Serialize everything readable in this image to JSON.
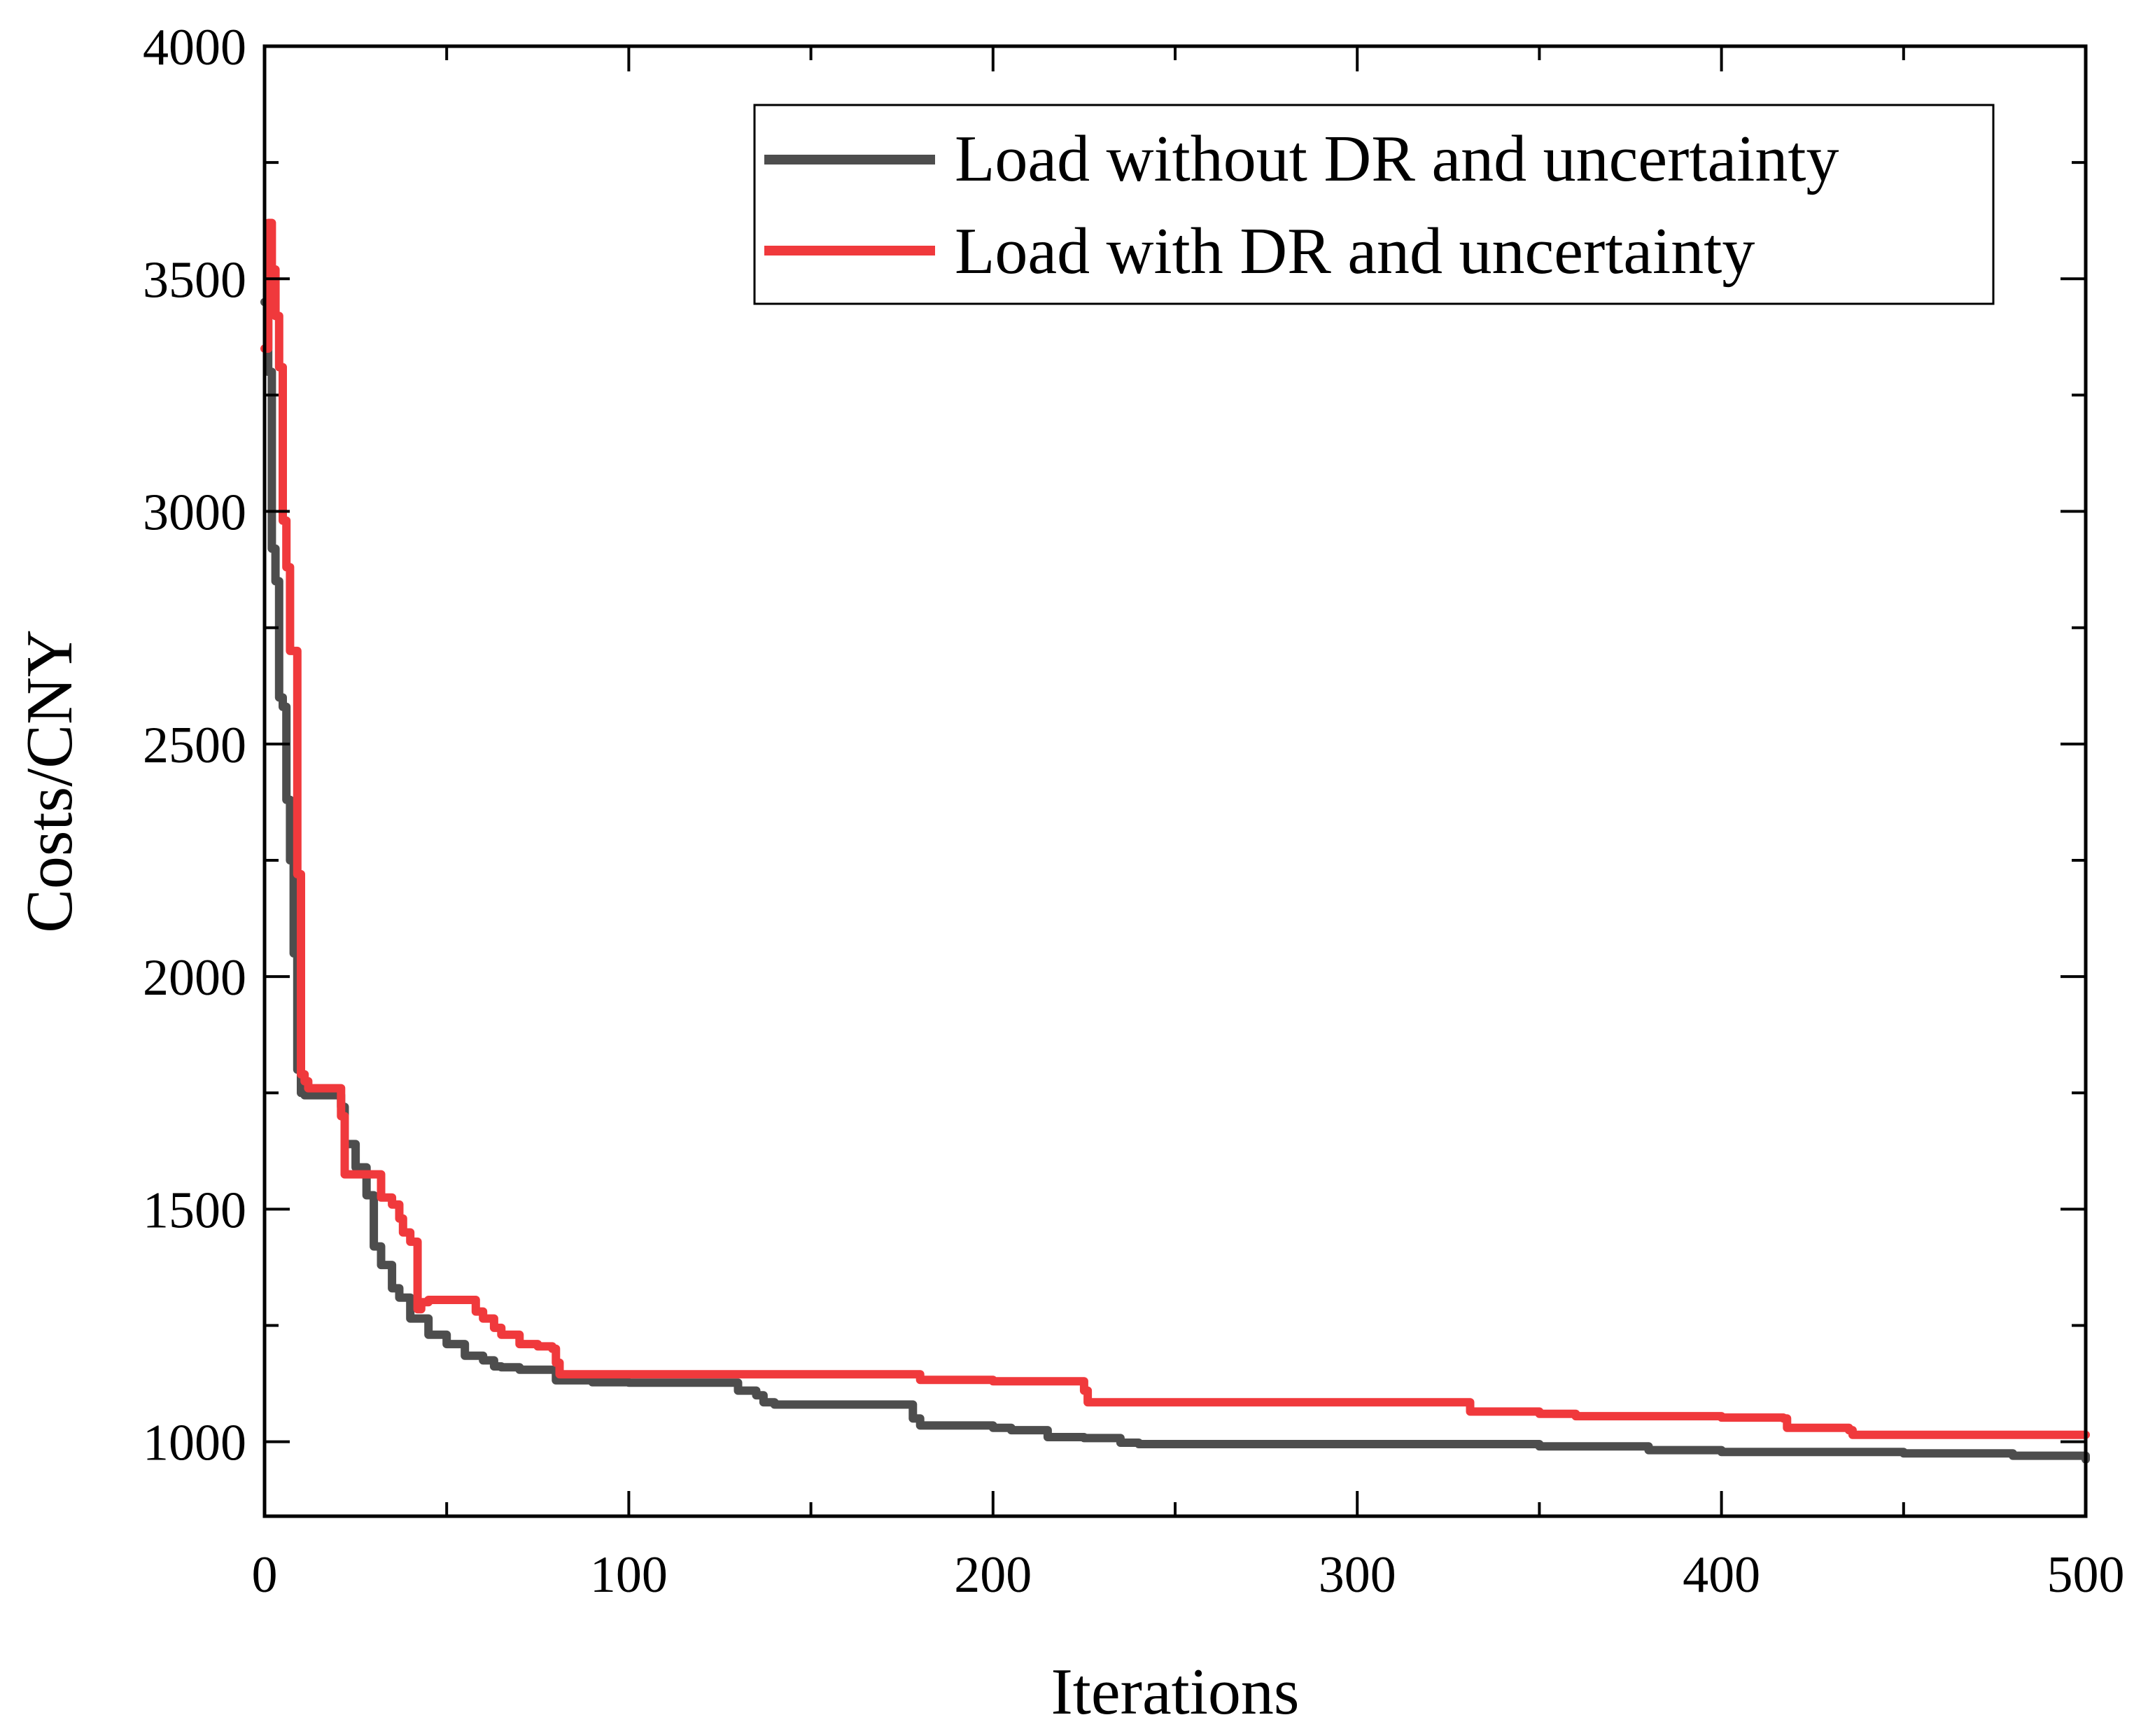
{
  "chart_data": {
    "type": "line",
    "title": "",
    "xlabel": "Iterations",
    "ylabel": "Costs/CNY",
    "xlim": [
      0,
      500
    ],
    "ylim": [
      840,
      4000
    ],
    "xticks": [
      0,
      100,
      200,
      300,
      400,
      500
    ],
    "xtick_labels": [
      "0",
      "100",
      "200",
      "300",
      "400",
      "500"
    ],
    "yticks": [
      1000,
      1500,
      2000,
      2500,
      3000,
      3500,
      4000
    ],
    "ytick_labels": [
      "1000",
      "1500",
      "2000",
      "2500",
      "3000",
      "3500",
      "4000"
    ],
    "grid": false,
    "legend_position": "top-right",
    "series": [
      {
        "name": "Load without DR and uncertainty",
        "color": "#4d4d4d",
        "x": [
          0,
          1,
          2,
          3,
          4,
          5,
          6,
          7,
          8,
          9,
          10,
          11,
          15,
          18,
          20,
          21,
          22,
          25,
          28,
          30,
          32,
          35,
          37,
          40,
          45,
          50,
          55,
          60,
          63,
          65,
          70,
          80,
          90,
          100,
          110,
          120,
          128,
          130,
          135,
          137,
          140,
          150,
          160,
          170,
          175,
          178,
          180,
          200,
          205,
          215,
          225,
          235,
          240,
          300,
          350,
          380,
          400,
          450,
          480,
          500
        ],
        "values": [
          3450,
          3300,
          2920,
          2850,
          2600,
          2580,
          2380,
          2250,
          2050,
          1800,
          1750,
          1745,
          1745,
          1745,
          1745,
          1720,
          1640,
          1590,
          1530,
          1420,
          1380,
          1330,
          1310,
          1265,
          1230,
          1210,
          1185,
          1175,
          1162,
          1160,
          1155,
          1132,
          1128,
          1127,
          1127,
          1127,
          1127,
          1110,
          1100,
          1085,
          1080,
          1080,
          1080,
          1080,
          1080,
          1050,
          1035,
          1030,
          1025,
          1010,
          1008,
          998,
          995,
          995,
          990,
          982,
          978,
          975,
          970,
          962
        ]
      },
      {
        "name": "Load with DR and uncertainty",
        "color": "#f0393c",
        "x": [
          0,
          1,
          2,
          3,
          4,
          5,
          6,
          7,
          8,
          9,
          10,
          11,
          12,
          15,
          18,
          20,
          21,
          22,
          25,
          30,
          32,
          35,
          37,
          38,
          40,
          41,
          42,
          43,
          45,
          50,
          55,
          58,
          60,
          63,
          65,
          70,
          75,
          79,
          80,
          81,
          100,
          150,
          175,
          180,
          200,
          220,
          225,
          226,
          300,
          330,
          331,
          350,
          360,
          400,
          417,
          418,
          430,
          435,
          436,
          450,
          500
        ],
        "values": [
          3350,
          3620,
          3520,
          3420,
          3310,
          2980,
          2880,
          2700,
          2700,
          2220,
          1790,
          1775,
          1760,
          1760,
          1760,
          1760,
          1700,
          1575,
          1575,
          1575,
          1525,
          1510,
          1480,
          1450,
          1430,
          1430,
          1285,
          1300,
          1305,
          1305,
          1305,
          1280,
          1265,
          1245,
          1230,
          1210,
          1205,
          1200,
          1170,
          1145,
          1145,
          1145,
          1145,
          1133,
          1130,
          1130,
          1110,
          1085,
          1085,
          1085,
          1065,
          1060,
          1055,
          1052,
          1050,
          1030,
          1030,
          1025,
          1015,
          1015,
          1015
        ]
      }
    ]
  }
}
